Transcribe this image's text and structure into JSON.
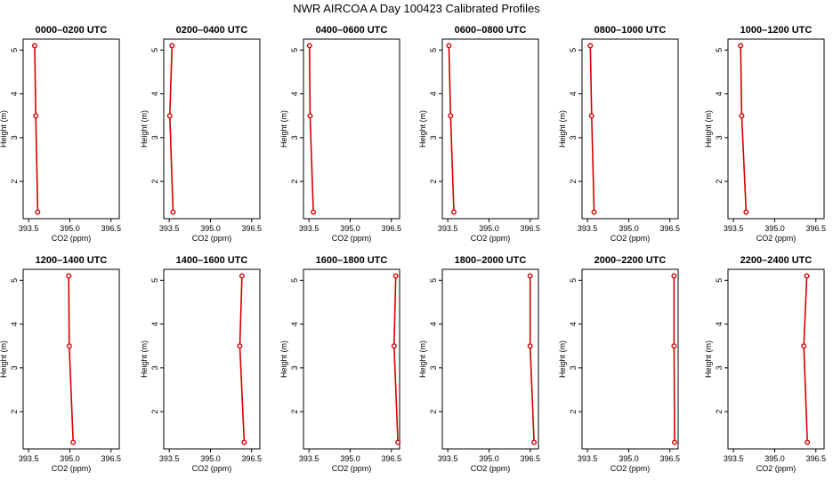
{
  "title": "NWR AIRCOA A  Day 100423  Calibrated Profiles",
  "colors": {
    "line": "#d40000",
    "axis": "#000000",
    "background": "#ffffff"
  },
  "chart_data": [
    {
      "type": "line",
      "title": "0000–0200 UTC",
      "xlabel": "CO2 (ppm)",
      "ylabel": "Height (m)",
      "xlim": [
        393.3,
        396.8
      ],
      "ylim": [
        1.15,
        5.25
      ],
      "xticks": [
        "393.5",
        "395.0",
        "396.5"
      ],
      "yticks": [
        "2",
        "3",
        "4",
        "5"
      ],
      "x": [
        393.72,
        393.76,
        393.83
      ],
      "y": [
        5.1,
        3.5,
        1.3
      ]
    },
    {
      "type": "line",
      "title": "0200–0400 UTC",
      "xlabel": "CO2 (ppm)",
      "ylabel": "Height (m)",
      "xlim": [
        393.3,
        396.8
      ],
      "ylim": [
        1.15,
        5.25
      ],
      "xticks": [
        "393.5",
        "395.0",
        "396.5"
      ],
      "yticks": [
        "2",
        "3",
        "4",
        "5"
      ],
      "x": [
        393.6,
        393.52,
        393.64
      ],
      "y": [
        5.1,
        3.5,
        1.3
      ]
    },
    {
      "type": "line",
      "title": "0400–0600 UTC",
      "xlabel": "CO2 (ppm)",
      "ylabel": "Height (m)",
      "xlim": [
        393.3,
        396.8
      ],
      "ylim": [
        1.15,
        5.25
      ],
      "xticks": [
        "393.5",
        "395.0",
        "396.5"
      ],
      "yticks": [
        "2",
        "3",
        "4",
        "5"
      ],
      "x": [
        393.52,
        393.54,
        393.66
      ],
      "y": [
        5.1,
        3.5,
        1.3
      ]
    },
    {
      "type": "line",
      "title": "0600–0800 UTC",
      "xlabel": "CO2 (ppm)",
      "ylabel": "Height (m)",
      "xlim": [
        393.3,
        396.8
      ],
      "ylim": [
        1.15,
        5.25
      ],
      "xticks": [
        "393.5",
        "395.0",
        "396.5"
      ],
      "yticks": [
        "2",
        "3",
        "4",
        "5"
      ],
      "x": [
        393.54,
        393.6,
        393.72
      ],
      "y": [
        5.1,
        3.5,
        1.3
      ]
    },
    {
      "type": "line",
      "title": "0800–1000 UTC",
      "xlabel": "CO2 (ppm)",
      "ylabel": "Height (m)",
      "xlim": [
        393.3,
        396.8
      ],
      "ylim": [
        1.15,
        5.25
      ],
      "xticks": [
        "393.5",
        "395.0",
        "396.5"
      ],
      "yticks": [
        "2",
        "3",
        "4",
        "5"
      ],
      "x": [
        393.6,
        393.65,
        393.74
      ],
      "y": [
        5.1,
        3.5,
        1.3
      ]
    },
    {
      "type": "line",
      "title": "1000–1200 UTC",
      "xlabel": "CO2 (ppm)",
      "ylabel": "Height (m)",
      "xlim": [
        393.3,
        396.8
      ],
      "ylim": [
        1.15,
        5.25
      ],
      "xticks": [
        "393.5",
        "395.0",
        "396.5"
      ],
      "yticks": [
        "2",
        "3",
        "4",
        "5"
      ],
      "x": [
        393.76,
        393.8,
        393.96
      ],
      "y": [
        5.1,
        3.5,
        1.3
      ]
    },
    {
      "type": "line",
      "title": "1200–1400 UTC",
      "xlabel": "CO2 (ppm)",
      "ylabel": "Height (m)",
      "xlim": [
        393.3,
        396.8
      ],
      "ylim": [
        1.15,
        5.25
      ],
      "xticks": [
        "393.5",
        "395.0",
        "396.5"
      ],
      "yticks": [
        "2",
        "3",
        "4",
        "5"
      ],
      "x": [
        394.96,
        394.98,
        395.12
      ],
      "y": [
        5.1,
        3.5,
        1.3
      ]
    },
    {
      "type": "line",
      "title": "1400–1600 UTC",
      "xlabel": "CO2 (ppm)",
      "ylabel": "Height (m)",
      "xlim": [
        393.3,
        396.8
      ],
      "ylim": [
        1.15,
        5.25
      ],
      "xticks": [
        "393.5",
        "395.0",
        "396.5"
      ],
      "yticks": [
        "2",
        "3",
        "4",
        "5"
      ],
      "x": [
        396.15,
        396.07,
        396.23
      ],
      "y": [
        5.1,
        3.5,
        1.3
      ]
    },
    {
      "type": "line",
      "title": "1600–1800 UTC",
      "xlabel": "CO2 (ppm)",
      "ylabel": "Height (m)",
      "xlim": [
        393.3,
        396.8
      ],
      "ylim": [
        1.15,
        5.25
      ],
      "xticks": [
        "393.5",
        "395.0",
        "396.5"
      ],
      "yticks": [
        "2",
        "3",
        "4",
        "5"
      ],
      "x": [
        396.66,
        396.6,
        396.74
      ],
      "y": [
        5.1,
        3.5,
        1.3
      ]
    },
    {
      "type": "line",
      "title": "1800–2000 UTC",
      "xlabel": "CO2 (ppm)",
      "ylabel": "Height (m)",
      "xlim": [
        393.3,
        396.8
      ],
      "ylim": [
        1.15,
        5.25
      ],
      "xticks": [
        "393.5",
        "395.0",
        "396.5"
      ],
      "yticks": [
        "2",
        "3",
        "4",
        "5"
      ],
      "x": [
        396.5,
        396.5,
        396.64
      ],
      "y": [
        5.1,
        3.5,
        1.3
      ]
    },
    {
      "type": "line",
      "title": "2000–2200 UTC",
      "xlabel": "CO2 (ppm)",
      "ylabel": "Height (m)",
      "xlim": [
        393.3,
        396.8
      ],
      "ylim": [
        1.15,
        5.25
      ],
      "xticks": [
        "393.5",
        "395.0",
        "396.5"
      ],
      "yticks": [
        "2",
        "3",
        "4",
        "5"
      ],
      "x": [
        396.65,
        396.65,
        396.67
      ],
      "y": [
        5.1,
        3.5,
        1.3
      ]
    },
    {
      "type": "line",
      "title": "2200–2400 UTC",
      "xlabel": "CO2 (ppm)",
      "ylabel": "Height (m)",
      "xlim": [
        393.3,
        396.8
      ],
      "ylim": [
        1.15,
        5.25
      ],
      "xticks": [
        "393.5",
        "395.0",
        "396.5"
      ],
      "yticks": [
        "2",
        "3",
        "4",
        "5"
      ],
      "x": [
        396.17,
        396.06,
        396.19
      ],
      "y": [
        5.1,
        3.5,
        1.3
      ]
    }
  ]
}
